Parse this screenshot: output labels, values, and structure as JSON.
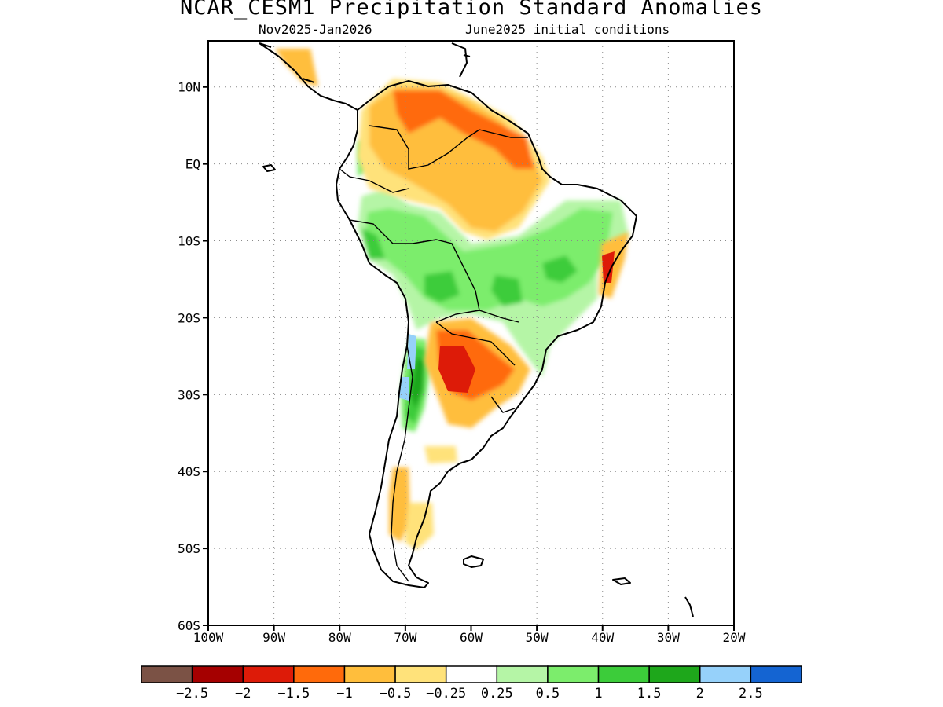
{
  "title": "NCAR_CESM1 Precipitation Standard Anomalies",
  "subtitle_left": "Nov2025-Jan2026",
  "subtitle_right": "June2025 initial conditions",
  "map": {
    "lon_range": [
      -100,
      -20
    ],
    "lat_range": [
      -60,
      16
    ],
    "lat_ticks": [
      {
        "value": 10,
        "label": "10N"
      },
      {
        "value": 0,
        "label": "EQ"
      },
      {
        "value": -10,
        "label": "10S"
      },
      {
        "value": -20,
        "label": "20S"
      },
      {
        "value": -30,
        "label": "30S"
      },
      {
        "value": -40,
        "label": "40S"
      },
      {
        "value": -50,
        "label": "50S"
      },
      {
        "value": -60,
        "label": "60S"
      }
    ],
    "lon_ticks": [
      {
        "value": -100,
        "label": "100W"
      },
      {
        "value": -90,
        "label": "90W"
      },
      {
        "value": -80,
        "label": "80W"
      },
      {
        "value": -70,
        "label": "70W"
      },
      {
        "value": -60,
        "label": "60W"
      },
      {
        "value": -50,
        "label": "50W"
      },
      {
        "value": -40,
        "label": "40W"
      },
      {
        "value": -30,
        "label": "30W"
      },
      {
        "value": -20,
        "label": "20W"
      }
    ],
    "grid": "dotted"
  },
  "legend": {
    "colors": [
      "#7b5245",
      "#a50000",
      "#dd1b08",
      "#ff6a0b",
      "#ffbe3c",
      "#ffe27a",
      "#ffffff",
      "#b5f5a6",
      "#7ced6c",
      "#3ccc3a",
      "#1ea71b",
      "#96d1fa",
      "#1464d2"
    ],
    "labels": [
      "-2.5",
      "-2",
      "-1.5",
      "-1",
      "-0.5",
      "-0.25",
      "0.25",
      "0.5",
      "1",
      "1.5",
      "2",
      "2.5"
    ]
  }
}
